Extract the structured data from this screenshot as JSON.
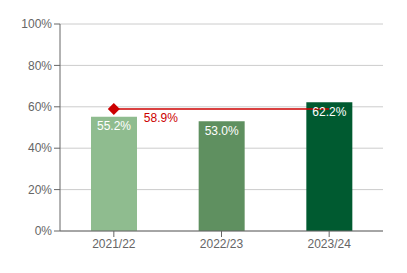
{
  "chart_data": {
    "type": "bar",
    "categories": [
      "2021/22",
      "2022/23",
      "2023/24"
    ],
    "values": [
      55.2,
      53.0,
      62.2
    ],
    "value_labels": [
      "55.2%",
      "53.0%",
      "62.2%"
    ],
    "colors": [
      "#8fbc8f",
      "#5f9060",
      "#005a30"
    ],
    "ylim": [
      0,
      100
    ],
    "yticks": [
      {
        "value": 0,
        "label": "0%"
      },
      {
        "value": 20,
        "label": "20%"
      },
      {
        "value": 40,
        "label": "40%"
      },
      {
        "value": 60,
        "label": "60%"
      },
      {
        "value": 80,
        "label": "80%"
      },
      {
        "value": 100,
        "label": "100%"
      }
    ],
    "grid": true,
    "data_labels": true,
    "reference_line": {
      "value": 58.9,
      "label": "58.9%",
      "color": "#cc0000"
    }
  }
}
